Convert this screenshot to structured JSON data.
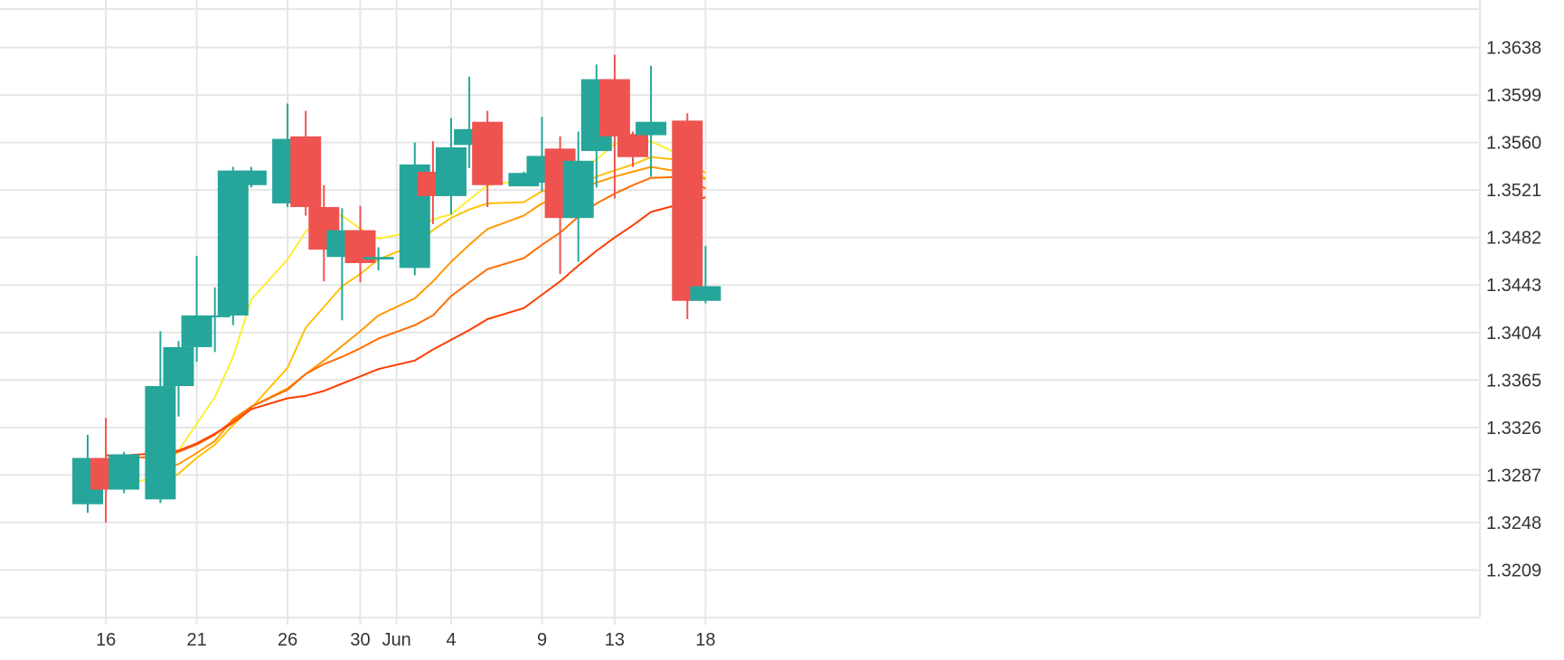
{
  "chart_data": {
    "type": "candlestick",
    "colors": {
      "up": "#26a69a",
      "down": "#ef5350",
      "grid": "#e6e6e6",
      "text": "#333333"
    },
    "x_tick_labels": [
      "16",
      "21",
      "26",
      "30",
      "Jun",
      "4",
      "9",
      "13",
      "18"
    ],
    "y_ticks": [
      "1.3638",
      "1.3599",
      "1.3560",
      "1.3521",
      "1.3482",
      "1.3443",
      "1.3404",
      "1.3365",
      "1.3326",
      "1.3287",
      "1.3248",
      "1.3209"
    ],
    "ylim": [
      1.317,
      1.3677
    ],
    "candles": [
      {
        "date": "May 15",
        "open": 1.3263,
        "high": 1.332,
        "low": 1.3256,
        "close": 1.3301
      },
      {
        "date": "May 16",
        "open": 1.3301,
        "high": 1.3334,
        "low": 1.3248,
        "close": 1.3275
      },
      {
        "date": "May 17",
        "open": 1.3275,
        "high": 1.3306,
        "low": 1.3272,
        "close": 1.3304
      },
      {
        "date": "May 19",
        "open": 1.3267,
        "high": 1.3405,
        "low": 1.3264,
        "close": 1.336
      },
      {
        "date": "May 20",
        "open": 1.336,
        "high": 1.3397,
        "low": 1.3335,
        "close": 1.3392
      },
      {
        "date": "May 21",
        "open": 1.3392,
        "high": 1.3467,
        "low": 1.338,
        "close": 1.3418
      },
      {
        "date": "May 22",
        "open": 1.3418,
        "high": 1.3441,
        "low": 1.3388,
        "close": 1.3418
      },
      {
        "date": "May 23",
        "open": 1.3418,
        "high": 1.354,
        "low": 1.341,
        "close": 1.3537
      },
      {
        "date": "May 24",
        "open": 1.3525,
        "high": 1.354,
        "low": 1.3523,
        "close": 1.3537
      },
      {
        "date": "May 26",
        "open": 1.351,
        "high": 1.3592,
        "low": 1.3507,
        "close": 1.3563
      },
      {
        "date": "May 27",
        "open": 1.3565,
        "high": 1.3586,
        "low": 1.35,
        "close": 1.3507
      },
      {
        "date": "May 28",
        "open": 1.3507,
        "high": 1.3525,
        "low": 1.3446,
        "close": 1.3472
      },
      {
        "date": "May 29",
        "open": 1.3466,
        "high": 1.3506,
        "low": 1.3414,
        "close": 1.3488
      },
      {
        "date": "May 30",
        "open": 1.3488,
        "high": 1.3508,
        "low": 1.3445,
        "close": 1.3461
      },
      {
        "date": "May 31",
        "open": 1.3464,
        "high": 1.3474,
        "low": 1.3455,
        "close": 1.3466
      },
      {
        "date": "Jun 2",
        "open": 1.3457,
        "high": 1.356,
        "low": 1.3451,
        "close": 1.3542
      },
      {
        "date": "Jun 3",
        "open": 1.3536,
        "high": 1.3561,
        "low": 1.3493,
        "close": 1.3516
      },
      {
        "date": "Jun 4",
        "open": 1.3516,
        "high": 1.358,
        "low": 1.3501,
        "close": 1.3556
      },
      {
        "date": "Jun 5",
        "open": 1.3558,
        "high": 1.3614,
        "low": 1.3539,
        "close": 1.3571
      },
      {
        "date": "Jun 6",
        "open": 1.3577,
        "high": 1.3586,
        "low": 1.3507,
        "close": 1.3525
      },
      {
        "date": "Jun 8",
        "open": 1.3524,
        "high": 1.3536,
        "low": 1.3525,
        "close": 1.3535
      },
      {
        "date": "Jun 9",
        "open": 1.3527,
        "high": 1.3581,
        "low": 1.352,
        "close": 1.3549
      },
      {
        "date": "Jun 10",
        "open": 1.3555,
        "high": 1.3565,
        "low": 1.3452,
        "close": 1.3498
      },
      {
        "date": "Jun 11",
        "open": 1.3498,
        "high": 1.3569,
        "low": 1.3462,
        "close": 1.3545
      },
      {
        "date": "Jun 12",
        "open": 1.3553,
        "high": 1.3624,
        "low": 1.3523,
        "close": 1.3612
      },
      {
        "date": "Jun 13",
        "open": 1.3612,
        "high": 1.3632,
        "low": 1.3514,
        "close": 1.3565
      },
      {
        "date": "Jun 14",
        "open": 1.3567,
        "high": 1.3569,
        "low": 1.354,
        "close": 1.3548
      },
      {
        "date": "Jun 15",
        "open": 1.3566,
        "high": 1.3623,
        "low": 1.3532,
        "close": 1.3577
      },
      {
        "date": "Jun 17",
        "open": 1.3578,
        "high": 1.3584,
        "low": 1.3415,
        "close": 1.343
      },
      {
        "date": "Jun 18",
        "open": 1.343,
        "high": 1.3475,
        "low": 1.3428,
        "close": 1.3442
      }
    ],
    "series": [
      {
        "color": "#ffee33",
        "values": [
          null,
          1.3287,
          1.3279,
          1.3286,
          1.3307,
          1.3329,
          1.3351,
          1.3384,
          1.3431,
          1.3464,
          1.3487,
          1.35,
          1.35,
          1.3489,
          1.3481,
          1.3487,
          1.3497,
          1.3501,
          1.3513,
          1.3525,
          1.3529,
          1.3544,
          1.354,
          1.3537,
          1.3546,
          1.3559,
          1.356,
          1.3561,
          1.3547,
          1.353
        ]
      },
      {
        "color": "#ffc107",
        "values": [
          null,
          null,
          null,
          1.328,
          1.3288,
          1.3301,
          1.3312,
          1.3328,
          1.3342,
          1.3375,
          1.3408,
          1.3425,
          1.3442,
          1.3452,
          1.3464,
          1.3476,
          1.3488,
          1.3498,
          1.3505,
          1.351,
          1.3511,
          1.352,
          1.3521,
          1.3524,
          1.3532,
          1.3537,
          1.3542,
          1.3548,
          1.3545,
          1.3535
        ]
      },
      {
        "color": "#ff9800",
        "values": [
          null,
          null,
          null,
          1.3291,
          1.3296,
          1.3305,
          1.3315,
          1.3333,
          1.3343,
          1.3358,
          1.337,
          1.3381,
          1.3393,
          1.3405,
          1.3418,
          1.3432,
          1.3446,
          1.3462,
          1.3476,
          1.3489,
          1.35,
          1.351,
          1.3516,
          1.3521,
          1.3527,
          1.3532,
          1.3536,
          1.354,
          1.3535,
          1.353
        ]
      },
      {
        "color": "#ff6d00",
        "values": [
          null,
          1.33,
          1.3301,
          1.3302,
          1.3306,
          1.3312,
          1.332,
          1.3332,
          1.3343,
          1.3357,
          1.337,
          1.3378,
          1.3384,
          1.3391,
          1.3399,
          1.341,
          1.3418,
          1.3434,
          1.3445,
          1.3456,
          1.3465,
          1.3476,
          1.3486,
          1.3499,
          1.351,
          1.3518,
          1.3525,
          1.3531,
          1.3532,
          1.3522
        ]
      },
      {
        "color": "#ff3d00",
        "values": [
          null,
          1.3303,
          1.3303,
          1.3305,
          1.3307,
          1.3313,
          1.3321,
          1.333,
          1.3341,
          1.335,
          1.3352,
          1.3356,
          1.3362,
          1.3368,
          1.3374,
          1.3381,
          1.339,
          1.3398,
          1.3406,
          1.3415,
          1.3424,
          1.3435,
          1.3446,
          1.3459,
          1.3471,
          1.3482,
          1.3492,
          1.3503,
          1.3511,
          1.3515
        ]
      }
    ],
    "grid": true
  }
}
